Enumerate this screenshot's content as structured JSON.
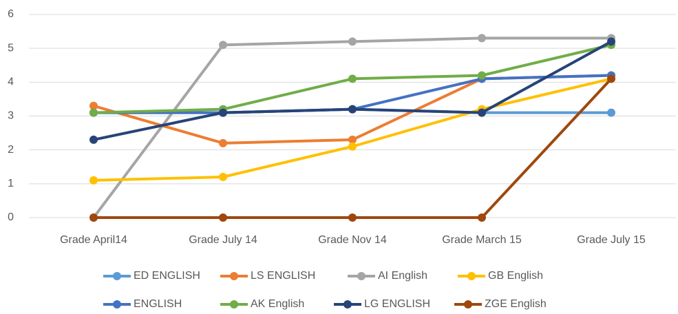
{
  "chart_data": {
    "type": "line",
    "categories": [
      "Grade April14",
      "Grade July 14",
      "Grade Nov 14",
      "Grade March 15",
      "Grade July 15"
    ],
    "series": [
      {
        "name": "ED ENGLISH",
        "color": "#5b9bd5",
        "values": [
          3.1,
          3.1,
          3.2,
          3.1,
          3.1
        ]
      },
      {
        "name": "LS ENGLISH",
        "color": "#ed7d31",
        "values": [
          3.3,
          2.2,
          2.3,
          4.1,
          4.2
        ]
      },
      {
        "name": "AI English",
        "color": "#a5a5a5",
        "values": [
          0,
          5.1,
          5.2,
          5.3,
          5.3
        ]
      },
      {
        "name": "GB English",
        "color": "#ffc000",
        "values": [
          1.1,
          1.2,
          2.1,
          3.2,
          4.1
        ]
      },
      {
        "name": "ENGLISH",
        "color": "#4472c4",
        "values": [
          3.1,
          3.1,
          3.2,
          4.1,
          4.2
        ]
      },
      {
        "name": "AK English",
        "color": "#70ad47",
        "values": [
          3.1,
          3.2,
          4.1,
          4.2,
          5.1
        ]
      },
      {
        "name": "LG ENGLISH",
        "color": "#264478",
        "values": [
          2.3,
          3.1,
          3.2,
          3.1,
          5.2
        ]
      },
      {
        "name": "ZGE English",
        "color": "#9e480e",
        "values": [
          0,
          0,
          0,
          0,
          4.1
        ]
      }
    ],
    "ylim": [
      0,
      6
    ],
    "yticks": [
      0,
      1,
      2,
      3,
      4,
      5,
      6
    ],
    "grid": true,
    "legend": "bottom"
  }
}
